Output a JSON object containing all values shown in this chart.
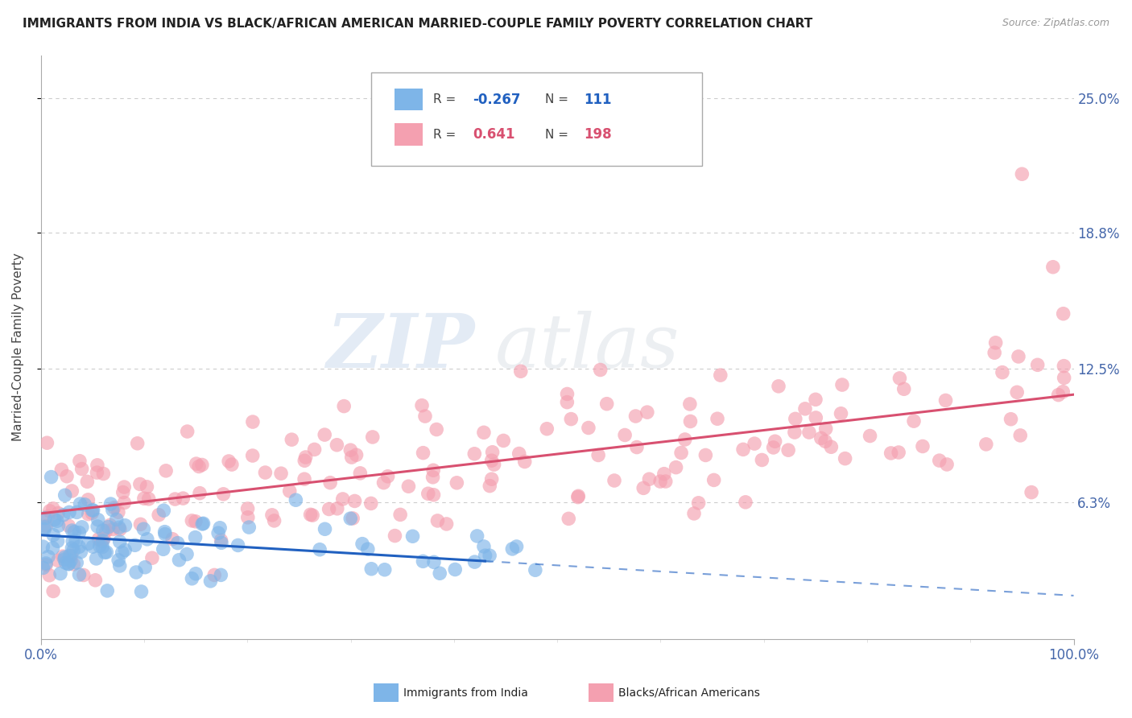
{
  "title": "IMMIGRANTS FROM INDIA VS BLACK/AFRICAN AMERICAN MARRIED-COUPLE FAMILY POVERTY CORRELATION CHART",
  "source_text": "Source: ZipAtlas.com",
  "ylabel": "Married-Couple Family Poverty",
  "watermark_zip": "ZIP",
  "watermark_atlas": "atlas",
  "legend_r_blue": "-0.267",
  "legend_n_blue": "111",
  "legend_r_pink": "0.641",
  "legend_n_pink": "198",
  "legend_label_blue": "Immigrants from India",
  "legend_label_pink": "Blacks/African Americans",
  "xlim": [
    0,
    100
  ],
  "ylim": [
    0,
    27
  ],
  "ytick_vals": [
    6.3,
    12.5,
    18.8,
    25.0
  ],
  "ytick_labels": [
    "6.3%",
    "12.5%",
    "18.8%",
    "25.0%"
  ],
  "blue_color": "#7EB5E8",
  "pink_color": "#F4A0B0",
  "blue_line_color": "#2060C0",
  "pink_line_color": "#D85070",
  "title_color": "#222222",
  "axis_label_color": "#4466AA",
  "grid_color": "#CCCCCC",
  "background_color": "#FFFFFF",
  "blue_intercept": 4.8,
  "blue_slope": -0.028,
  "pink_intercept": 5.8,
  "pink_slope": 0.055
}
